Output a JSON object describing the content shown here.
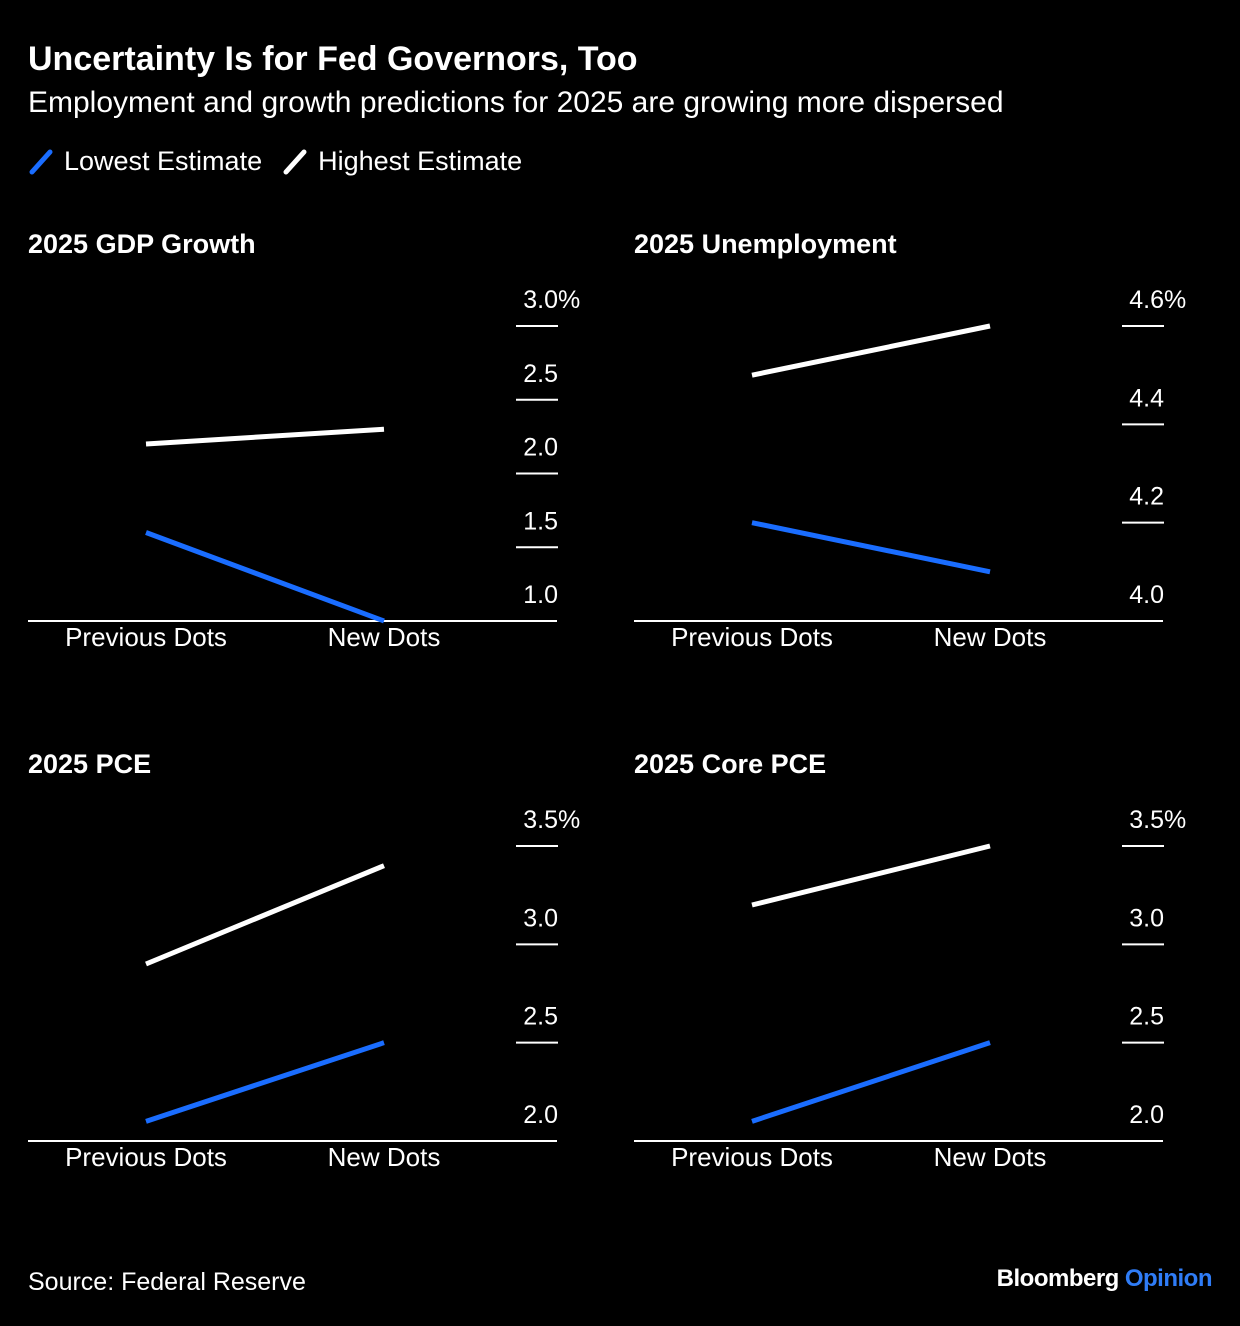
{
  "header": {
    "title": "Uncertainty Is for Fed Governors, Too",
    "subtitle": "Employment and growth predictions for 2025 are growing more dispersed"
  },
  "legend": {
    "low_label": "Lowest Estimate",
    "high_label": "Highest Estimate"
  },
  "colors": {
    "background": "#000000",
    "low": "#1a6dff",
    "high": "#ffffff",
    "brand_accent": "#2f7cf6"
  },
  "footer": {
    "source": "Source: Federal Reserve",
    "brand_main": "Bloomberg",
    "brand_accent": "Opinion"
  },
  "chart_data": [
    {
      "type": "line",
      "title": "2025 GDP Growth",
      "categories": [
        "Previous Dots",
        "New Dots"
      ],
      "series": [
        {
          "name": "Lowest Estimate",
          "values": [
            1.6,
            1.0
          ]
        },
        {
          "name": "Highest Estimate",
          "values": [
            2.2,
            2.3
          ]
        }
      ],
      "ylim": [
        1.0,
        3.0
      ],
      "yticks": [
        1.0,
        1.5,
        2.0,
        2.5,
        3.0
      ],
      "ytick_labels": [
        "1.0",
        "1.5",
        "2.0",
        "2.5",
        "3.0%"
      ]
    },
    {
      "type": "line",
      "title": "2025 Unemployment",
      "categories": [
        "Previous Dots",
        "New Dots"
      ],
      "series": [
        {
          "name": "Lowest Estimate",
          "values": [
            4.2,
            4.1
          ]
        },
        {
          "name": "Highest Estimate",
          "values": [
            4.5,
            4.6
          ]
        }
      ],
      "ylim": [
        4.0,
        4.6
      ],
      "yticks": [
        4.0,
        4.2,
        4.4,
        4.6
      ],
      "ytick_labels": [
        "4.0",
        "4.2",
        "4.4",
        "4.6%"
      ]
    },
    {
      "type": "line",
      "title": "2025 PCE",
      "categories": [
        "Previous Dots",
        "New Dots"
      ],
      "series": [
        {
          "name": "Lowest Estimate",
          "values": [
            2.1,
            2.5
          ]
        },
        {
          "name": "Highest Estimate",
          "values": [
            2.9,
            3.4
          ]
        }
      ],
      "ylim": [
        2.0,
        3.5
      ],
      "yticks": [
        2.0,
        2.5,
        3.0,
        3.5
      ],
      "ytick_labels": [
        "2.0",
        "2.5",
        "3.0",
        "3.5%"
      ]
    },
    {
      "type": "line",
      "title": "2025 Core PCE",
      "categories": [
        "Previous Dots",
        "New Dots"
      ],
      "series": [
        {
          "name": "Lowest Estimate",
          "values": [
            2.1,
            2.5
          ]
        },
        {
          "name": "Highest Estimate",
          "values": [
            3.2,
            3.5
          ]
        }
      ],
      "ylim": [
        2.0,
        3.5
      ],
      "yticks": [
        2.0,
        2.5,
        3.0,
        3.5
      ],
      "ytick_labels": [
        "2.0",
        "2.5",
        "3.0",
        "3.5%"
      ]
    }
  ]
}
